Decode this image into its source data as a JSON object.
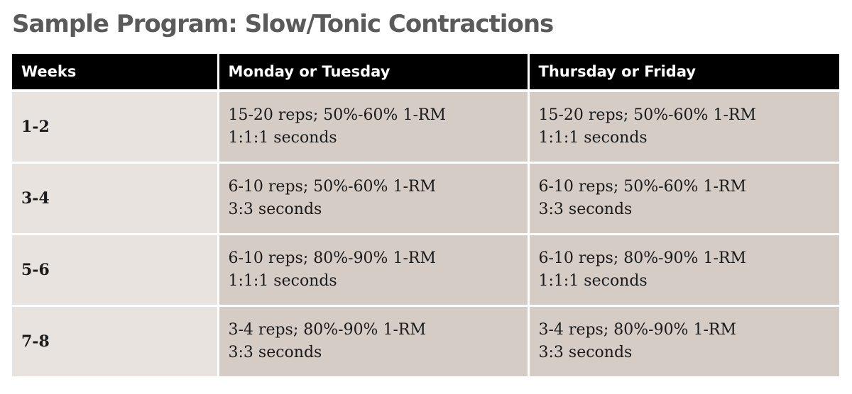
{
  "title": "Sample Program: Slow/Tonic Contractions",
  "headers": [
    "Weeks",
    "Monday or Tuesday",
    "Thursday or Friday"
  ],
  "rows": [
    {
      "weeks": "1-2",
      "mon": {
        "line1": "15-20 reps; 50%-60% 1-RM",
        "line2": "1:1:1 seconds"
      },
      "thu": {
        "line1": "15-20 reps; 50%-60% 1-RM",
        "line2": "1:1:1 seconds"
      }
    },
    {
      "weeks": "3-4",
      "mon": {
        "line1": "6-10 reps; 50%-60% 1-RM",
        "line2": "3:3 seconds"
      },
      "thu": {
        "line1": "6-10 reps; 50%-60% 1-RM",
        "line2": "3:3 seconds"
      }
    },
    {
      "weeks": "5-6",
      "mon": {
        "line1": "6-10 reps; 80%-90% 1-RM",
        "line2": "1:1:1 seconds"
      },
      "thu": {
        "line1": "6-10 reps; 80%-90% 1-RM",
        "line2": "1:1:1 seconds"
      }
    },
    {
      "weeks": "7-8",
      "mon": {
        "line1": "3-4 reps; 80%-90% 1-RM",
        "line2": "3:3 seconds"
      },
      "thu": {
        "line1": "3-4 reps; 80%-90% 1-RM",
        "line2": "3:3 seconds"
      }
    }
  ],
  "colors": {
    "title": "#5a5a5a",
    "header_bg": "#000000",
    "header_text": "#ffffff",
    "week_cell_bg": "#e9e3df",
    "detail_cell_bg": "#d5ccc5"
  }
}
